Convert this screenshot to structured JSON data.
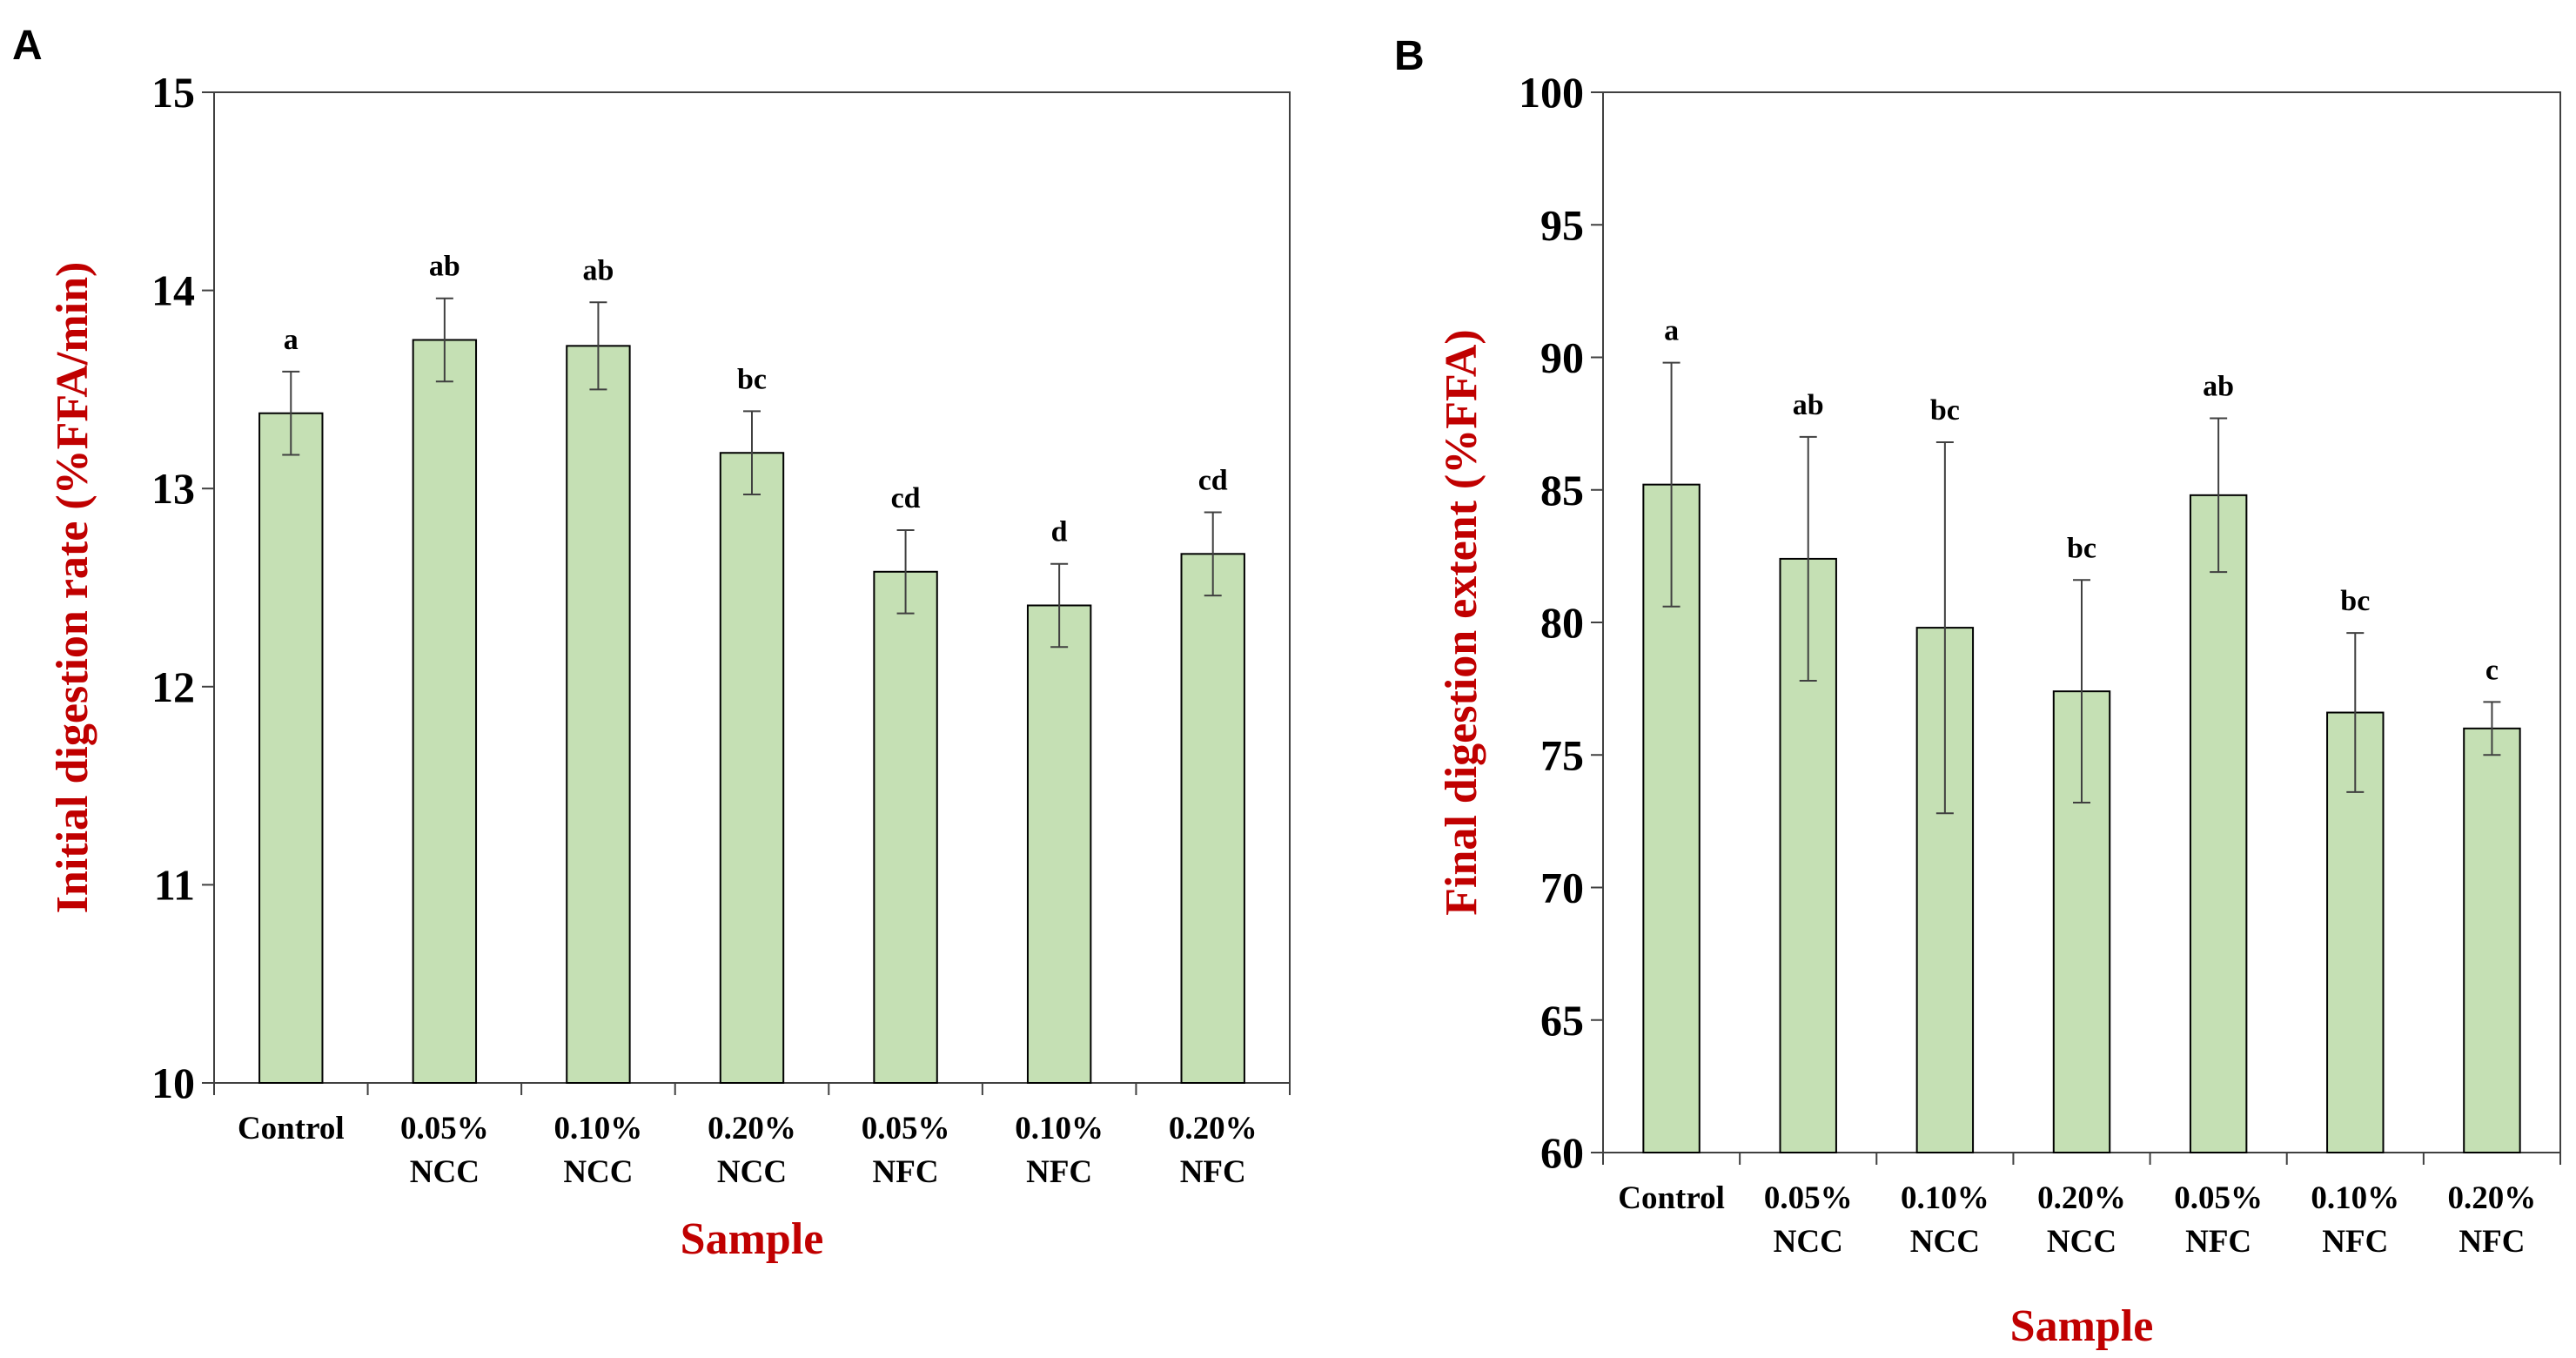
{
  "colors": {
    "bar_fill": "#c5e0b4",
    "bar_stroke": "#000000",
    "axis_title": "#c00000",
    "error_bar": "#404040"
  },
  "chart_data": [
    {
      "panel": "A",
      "type": "bar",
      "ylabel": "Initial digestion rate (%FFA/min)",
      "xlabel": "Sample",
      "ylim": [
        10,
        15
      ],
      "yticks": [
        10,
        11,
        12,
        13,
        14,
        15
      ],
      "grid": false,
      "categories": [
        [
          "Control"
        ],
        [
          "0.05%",
          "NCC"
        ],
        [
          "0.10%",
          "NCC"
        ],
        [
          "0.20%",
          "NCC"
        ],
        [
          "0.05%",
          "NFC"
        ],
        [
          "0.10%",
          "NFC"
        ],
        [
          "0.20%",
          "NFC"
        ]
      ],
      "values": [
        13.38,
        13.75,
        13.72,
        13.18,
        12.58,
        12.41,
        12.67
      ],
      "errors": [
        0.21,
        0.21,
        0.22,
        0.21,
        0.21,
        0.21,
        0.21
      ],
      "significance": [
        "a",
        "ab",
        "ab",
        "bc",
        "cd",
        "d",
        "cd"
      ]
    },
    {
      "panel": "B",
      "type": "bar",
      "ylabel": "Final digestion extent (%FFA)",
      "xlabel": "Sample",
      "ylim": [
        60,
        100
      ],
      "yticks": [
        60,
        65,
        70,
        75,
        80,
        85,
        90,
        95,
        100
      ],
      "grid": false,
      "categories": [
        [
          "Control"
        ],
        [
          "0.05%",
          "NCC"
        ],
        [
          "0.10%",
          "NCC"
        ],
        [
          "0.20%",
          "NCC"
        ],
        [
          "0.05%",
          "NFC"
        ],
        [
          "0.10%",
          "NFC"
        ],
        [
          "0.20%",
          "NFC"
        ]
      ],
      "values": [
        85.2,
        82.4,
        79.8,
        77.4,
        84.8,
        76.6,
        76.0
      ],
      "errors": [
        4.6,
        4.6,
        7.0,
        4.2,
        2.9,
        3.0,
        1.0
      ],
      "significance": [
        "a",
        "ab",
        "bc",
        "bc",
        "ab",
        "bc",
        "c"
      ]
    }
  ]
}
